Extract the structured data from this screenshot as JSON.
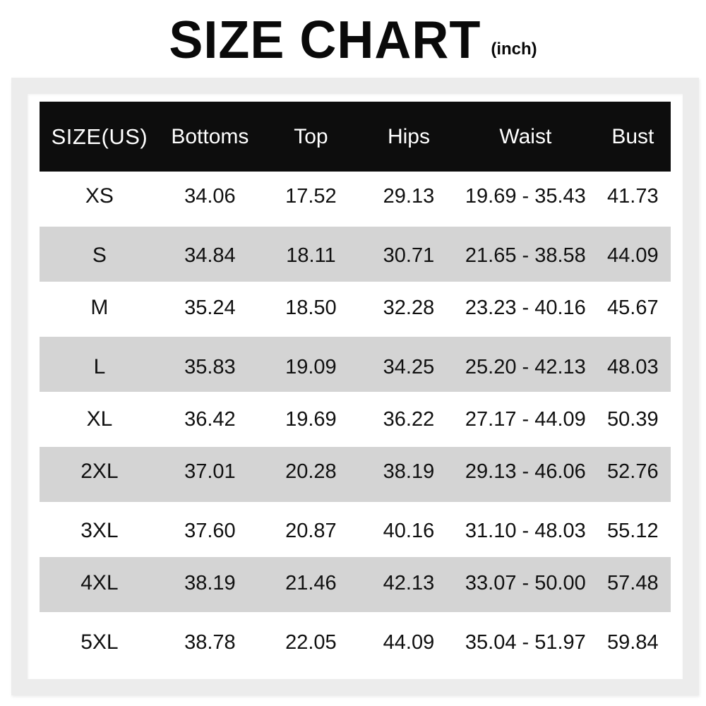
{
  "title": "SIZE CHART",
  "unit_label": "(inch)",
  "colors": {
    "header_bg": "#0d0d0d",
    "header_text": "#ffffff",
    "stripe_bg": "#d4d4d4",
    "row_bg": "#ffffff",
    "frame_border": "#ececec",
    "text": "#101010"
  },
  "chart_data": {
    "type": "table",
    "title": "SIZE CHART",
    "unit_label": "(inch)",
    "columns": [
      "SIZE(US)",
      "Bottoms",
      "Top",
      "Hips",
      "Waist",
      "Bust"
    ],
    "rows": [
      [
        "XS",
        "34.06",
        "17.52",
        "29.13",
        "19.69 - 35.43",
        "41.73"
      ],
      [
        "S",
        "34.84",
        "18.11",
        "30.71",
        "21.65 - 38.58",
        "44.09"
      ],
      [
        "M",
        "35.24",
        "18.50",
        "32.28",
        "23.23 - 40.16",
        "45.67"
      ],
      [
        "L",
        "35.83",
        "19.09",
        "34.25",
        "25.20 - 42.13",
        "48.03"
      ],
      [
        "XL",
        "36.42",
        "19.69",
        "36.22",
        "27.17 - 44.09",
        "50.39"
      ],
      [
        "2XL",
        "37.01",
        "20.28",
        "38.19",
        "29.13 - 46.06",
        "52.76"
      ],
      [
        "3XL",
        "37.60",
        "20.87",
        "40.16",
        "31.10 - 48.03",
        "55.12"
      ],
      [
        "4XL",
        "38.19",
        "21.46",
        "42.13",
        "33.07 - 50.00",
        "57.48"
      ],
      [
        "5XL",
        "38.78",
        "22.05",
        "44.09",
        "35.04 - 51.97",
        "59.84"
      ]
    ]
  }
}
